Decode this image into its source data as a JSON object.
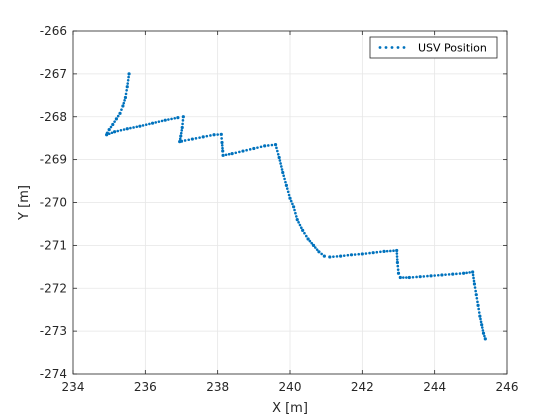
{
  "chart_data": {
    "type": "scatter",
    "xlabel": "X [m]",
    "ylabel": "Y [m]",
    "xlim": [
      234,
      246
    ],
    "ylim": [
      -274,
      -266
    ],
    "xticks": [
      234,
      236,
      238,
      240,
      242,
      244,
      246
    ],
    "yticks": [
      -274,
      -273,
      -272,
      -271,
      -270,
      -269,
      -268,
      -267,
      -266
    ],
    "xtick_labels": [
      "234",
      "236",
      "238",
      "240",
      "242",
      "244",
      "246"
    ],
    "ytick_labels": [
      "-274",
      "-273",
      "-272",
      "-271",
      "-270",
      "-269",
      "-268",
      "-267",
      "-266"
    ],
    "grid": true,
    "legend_position": "top-right",
    "colors": {
      "series": "#0072BD",
      "grid": "#e6e6e6",
      "axes": "#262626"
    },
    "series": [
      {
        "name": "USV Position",
        "marker": "dot",
        "x": [
          235.55,
          235.5,
          235.45,
          235.38,
          235.3,
          235.2,
          235.1,
          235.0,
          234.95,
          234.93,
          235.15,
          235.5,
          235.85,
          236.2,
          236.55,
          236.9,
          237.05,
          237.02,
          236.98,
          236.95,
          237.0,
          237.3,
          237.6,
          237.9,
          238.1,
          238.12,
          238.14,
          238.15,
          238.4,
          238.7,
          239.0,
          239.3,
          239.6,
          239.7,
          239.8,
          239.9,
          240.0,
          240.1,
          240.2,
          240.35,
          240.5,
          240.65,
          240.8,
          240.95,
          241.1,
          241.4,
          241.7,
          242.0,
          242.3,
          242.6,
          242.95,
          242.97,
          243.0,
          243.05,
          243.3,
          243.6,
          243.9,
          244.2,
          244.5,
          244.8,
          245.05,
          245.1,
          245.15,
          245.2,
          245.25,
          245.3,
          245.35,
          245.4
        ],
        "y": [
          -267.0,
          -267.3,
          -267.55,
          -267.75,
          -267.92,
          -268.05,
          -268.18,
          -268.3,
          -268.38,
          -268.42,
          -268.35,
          -268.28,
          -268.22,
          -268.15,
          -268.08,
          -268.02,
          -268.0,
          -268.25,
          -268.45,
          -268.58,
          -268.57,
          -268.52,
          -268.47,
          -268.42,
          -268.41,
          -268.6,
          -268.8,
          -268.9,
          -268.86,
          -268.8,
          -268.74,
          -268.68,
          -268.65,
          -268.95,
          -269.3,
          -269.6,
          -269.9,
          -270.1,
          -270.4,
          -270.65,
          -270.85,
          -271.0,
          -271.15,
          -271.25,
          -271.27,
          -271.25,
          -271.22,
          -271.2,
          -271.17,
          -271.14,
          -271.12,
          -271.4,
          -271.65,
          -271.75,
          -271.75,
          -271.73,
          -271.71,
          -271.69,
          -271.67,
          -271.65,
          -271.62,
          -271.9,
          -272.15,
          -272.4,
          -272.65,
          -272.85,
          -273.05,
          -273.18
        ]
      }
    ]
  }
}
